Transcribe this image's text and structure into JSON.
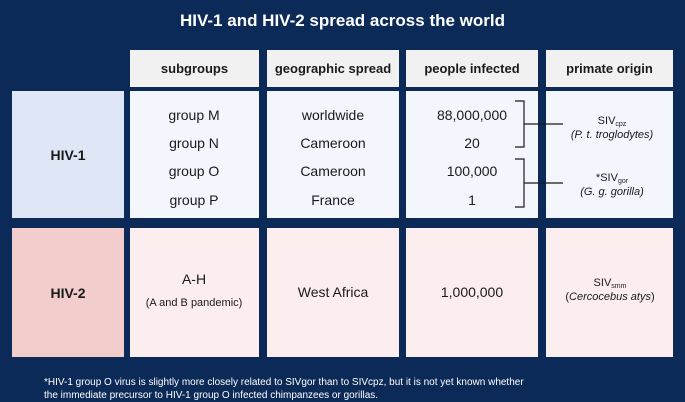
{
  "title": "HIV-1 and HIV-2 spread across the world",
  "headers": {
    "subgroups": "subgroups",
    "geographic_spread": "geographic spread",
    "people_infected": "people infected",
    "primate_origin": "primate origin"
  },
  "hiv1": {
    "label": "HIV-1",
    "rows": [
      {
        "subgroup": "group M",
        "spread": "worldwide",
        "infected": "88,000,000"
      },
      {
        "subgroup": "group N",
        "spread": "Cameroon",
        "infected": "20"
      },
      {
        "subgroup": "group O",
        "spread": "Cameroon",
        "infected": "100,000"
      },
      {
        "subgroup": "group P",
        "spread": "France",
        "infected": "1"
      }
    ],
    "origin_cpz": {
      "siv": "SIV",
      "sub": "cpz",
      "species": "P. t. troglodytes"
    },
    "origin_gor": {
      "prefix": "*",
      "siv": "SIV",
      "sub": "gor",
      "species": "G. g. gorilla"
    }
  },
  "hiv2": {
    "label": "HIV-2",
    "subgroup": "A-H",
    "subgroup_note": "(A and B pandemic)",
    "spread": "West Africa",
    "infected": "1,000,000",
    "origin": {
      "siv": "SIV",
      "sub": "smm",
      "species": "Cercocebus atys"
    }
  },
  "footnote": {
    "line1": "*HIV-1 group O virus is slightly more closely related to SIVgor than to SIVcpz, but it is not yet known whether",
    "line2": "the immediate precursor to HIV-1 group O  infected chimpanzees or gorillas."
  },
  "colors": {
    "background": "#0c2a57",
    "hiv1_label_bg": "#dfe7f7",
    "hiv2_label_bg": "#f3cccc",
    "hiv1_cell_bg": "#f3f6fc",
    "hiv2_cell_bg": "#fceeee",
    "header_bg": "#f1f1f1"
  }
}
